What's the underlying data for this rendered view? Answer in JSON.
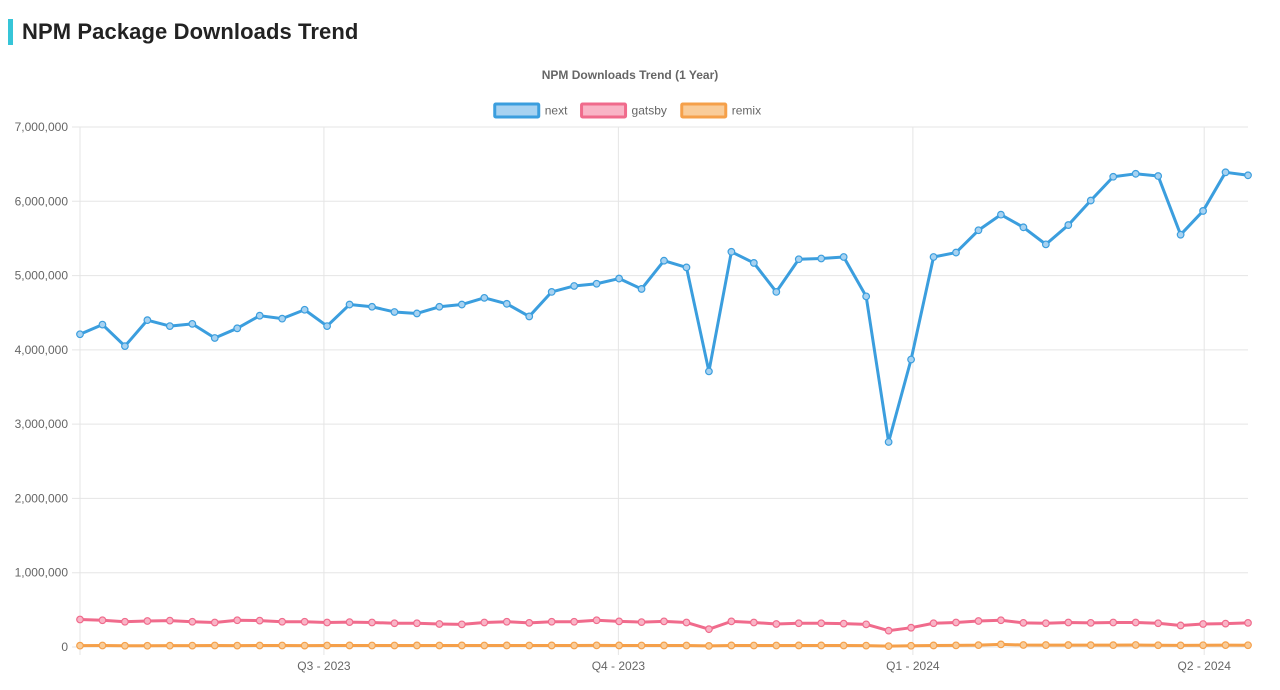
{
  "page": {
    "title": "NPM Package Downloads Trend",
    "accent_color": "#36c5d8"
  },
  "chart_data": {
    "type": "line",
    "title": "NPM Downloads Trend (1 Year)",
    "legend_position": "top",
    "grid": true,
    "ylim": [
      0,
      7000000
    ],
    "y_ticks": [
      0,
      1000000,
      2000000,
      3000000,
      4000000,
      5000000,
      6000000,
      7000000
    ],
    "y_tick_labels": [
      "0",
      "1,000,000",
      "2,000,000",
      "3,000,000",
      "4,000,000",
      "5,000,000",
      "6,000,000",
      "7,000,000"
    ],
    "x_ticks": [
      {
        "index": 10.86,
        "label": "Q3 - 2023"
      },
      {
        "index": 23.97,
        "label": "Q4 - 2023"
      },
      {
        "index": 37.08,
        "label": "Q1 - 2024"
      },
      {
        "index": 50.05,
        "label": "Q2 - 2024"
      }
    ],
    "x_count": 53,
    "series": [
      {
        "name": "next",
        "color": "#3b9ede",
        "fill": "#a7d2f1",
        "values": [
          4210000,
          4340000,
          4050000,
          4400000,
          4320000,
          4350000,
          4160000,
          4290000,
          4460000,
          4420000,
          4540000,
          4320000,
          4610000,
          4580000,
          4510000,
          4490000,
          4580000,
          4610000,
          4700000,
          4620000,
          4450000,
          4780000,
          4860000,
          4890000,
          4960000,
          4820000,
          5200000,
          5110000,
          3710000,
          5320000,
          5170000,
          4780000,
          5220000,
          5230000,
          5250000,
          4720000,
          2760000,
          3870000,
          5250000,
          5310000,
          5610000,
          5820000,
          5650000,
          5420000,
          5680000,
          6010000,
          6330000,
          6370000,
          6340000,
          5550000,
          5870000,
          6390000,
          6350000
        ]
      },
      {
        "name": "gatsby",
        "color": "#f06b8c",
        "fill": "#f9b4c6",
        "values": [
          370000,
          360000,
          340000,
          350000,
          355000,
          340000,
          330000,
          360000,
          355000,
          340000,
          340000,
          330000,
          335000,
          330000,
          320000,
          320000,
          310000,
          305000,
          330000,
          340000,
          325000,
          340000,
          340000,
          360000,
          345000,
          335000,
          345000,
          330000,
          240000,
          345000,
          330000,
          310000,
          320000,
          320000,
          315000,
          305000,
          220000,
          260000,
          320000,
          330000,
          350000,
          360000,
          325000,
          320000,
          330000,
          325000,
          330000,
          330000,
          320000,
          290000,
          310000,
          315000,
          325000
        ]
      },
      {
        "name": "remix",
        "color": "#f5a04a",
        "fill": "#f9cc99",
        "values": [
          18000,
          20000,
          17000,
          17000,
          18000,
          19000,
          20000,
          19000,
          20000,
          20000,
          19000,
          20000,
          21000,
          20000,
          20000,
          21000,
          20000,
          21000,
          20000,
          21000,
          20000,
          21000,
          20000,
          22000,
          21000,
          20000,
          21000,
          20000,
          15000,
          21000,
          20000,
          20000,
          21000,
          21000,
          20000,
          19000,
          12000,
          17000,
          21000,
          22000,
          25000,
          35000,
          27000,
          26000,
          26000,
          25000,
          25000,
          27000,
          24000,
          22000,
          24000,
          25000,
          24000
        ]
      }
    ]
  }
}
